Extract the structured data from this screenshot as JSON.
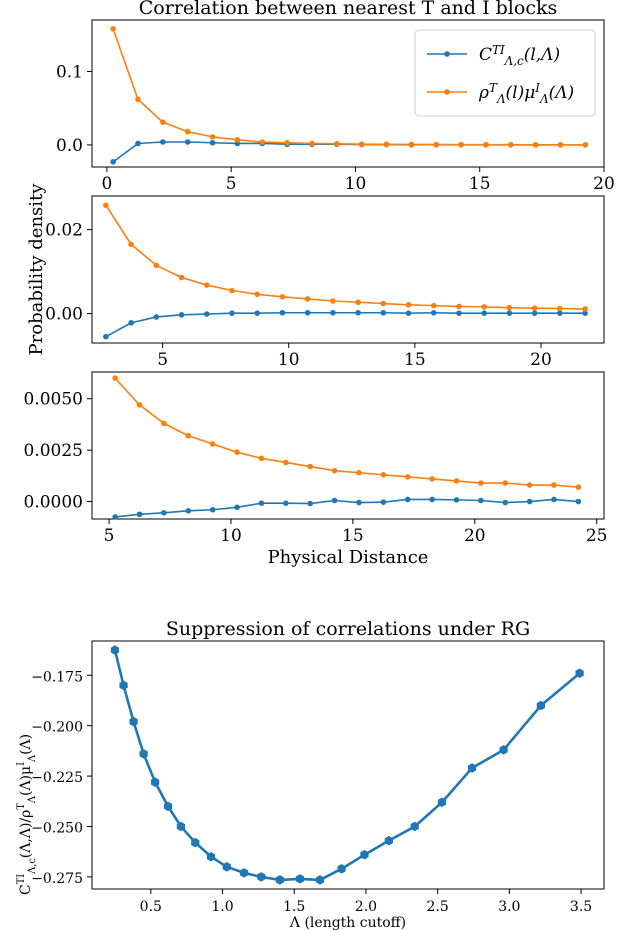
{
  "chart_data": [
    {
      "type": "line",
      "title": "Correlation between nearest T and I blocks",
      "xlabel": "",
      "ylabel": "",
      "xlim": [
        -0.6,
        20.0
      ],
      "ylim": [
        -0.03,
        0.17
      ],
      "xticks": [
        0,
        5,
        10,
        15,
        20
      ],
      "yticks": [
        0.0,
        0.1
      ],
      "ytick_labels": [
        "0.0",
        "0.1"
      ],
      "legend_position": "top-right",
      "series": [
        {
          "name": "C^{TI}_{Λ,c}(l,Λ)",
          "color": "#1f77b4",
          "x": [
            0.25,
            1.25,
            2.25,
            3.25,
            4.25,
            5.25,
            6.25,
            7.25,
            8.25,
            9.25,
            10.25,
            11.25,
            12.25,
            13.25,
            14.25,
            15.25,
            16.25,
            17.25,
            18.25,
            19.25
          ],
          "values": [
            -0.023,
            0.002,
            0.004,
            0.004,
            0.003,
            0.002,
            0.002,
            0.001,
            0.001,
            0.001,
            0.0005,
            0.0005,
            0.0003,
            0.0003,
            0.0002,
            0.0002,
            0.0001,
            0.0001,
            0.0001,
            0.0001
          ]
        },
        {
          "name": "ρ^T_Λ(l)μ^I_Λ(Λ)",
          "color": "#ff7f0e",
          "x": [
            0.25,
            1.25,
            2.25,
            3.25,
            4.25,
            5.25,
            6.25,
            7.25,
            8.25,
            9.25,
            10.25,
            11.25,
            12.25,
            13.25,
            14.25,
            15.25,
            16.25,
            17.25,
            18.25,
            19.25
          ],
          "values": [
            0.158,
            0.062,
            0.031,
            0.018,
            0.011,
            0.007,
            0.004,
            0.003,
            0.002,
            0.0015,
            0.001,
            0.0008,
            0.0006,
            0.0005,
            0.0004,
            0.0003,
            0.0003,
            0.0002,
            0.0002,
            0.0002
          ]
        }
      ]
    },
    {
      "type": "line",
      "title": "",
      "xlabel": "",
      "ylabel": "Probability density",
      "xlim": [
        2.2,
        22.5
      ],
      "ylim": [
        -0.007,
        0.028
      ],
      "xticks": [
        5,
        10,
        15,
        20
      ],
      "yticks": [
        0.0,
        0.02
      ],
      "ytick_labels": [
        "0.00",
        "0.02"
      ],
      "series": [
        {
          "name": "C^{TI}_{Λ,c}(l,Λ)",
          "color": "#1f77b4",
          "x": [
            2.75,
            3.75,
            4.75,
            5.75,
            6.75,
            7.75,
            8.75,
            9.75,
            10.75,
            11.75,
            12.75,
            13.75,
            14.75,
            15.75,
            16.75,
            17.75,
            18.75,
            19.75,
            20.75,
            21.75
          ],
          "values": [
            -0.0055,
            -0.0022,
            -0.0008,
            -0.0003,
            -0.0001,
            0.0001,
            0.0001,
            0.0002,
            0.0002,
            0.0002,
            0.0002,
            0.0002,
            0.0001,
            0.0002,
            0.0001,
            0.0001,
            0.0001,
            0.0001,
            0.0001,
            0.0001
          ]
        },
        {
          "name": "ρ^T_Λ(l)μ^I_Λ(Λ)",
          "color": "#ff7f0e",
          "x": [
            2.75,
            3.75,
            4.75,
            5.75,
            6.75,
            7.75,
            8.75,
            9.75,
            10.75,
            11.75,
            12.75,
            13.75,
            14.75,
            15.75,
            16.75,
            17.75,
            18.75,
            19.75,
            20.75,
            21.75
          ],
          "values": [
            0.0258,
            0.0165,
            0.0115,
            0.0086,
            0.0068,
            0.0055,
            0.0046,
            0.004,
            0.0035,
            0.003,
            0.0027,
            0.0024,
            0.0021,
            0.0019,
            0.0017,
            0.0016,
            0.0014,
            0.0013,
            0.0012,
            0.0011
          ]
        }
      ]
    },
    {
      "type": "line",
      "title": "",
      "xlabel": "Physical Distance",
      "ylabel": "",
      "xlim": [
        4.3,
        25.3
      ],
      "ylim": [
        -0.00085,
        0.0063
      ],
      "xticks": [
        5,
        10,
        15,
        20,
        25
      ],
      "yticks": [
        0.0,
        0.0025,
        0.005
      ],
      "ytick_labels": [
        "0.0000",
        "0.0025",
        "0.0050"
      ],
      "series": [
        {
          "name": "C^{TI}_{Λ,c}(l,Λ)",
          "color": "#1f77b4",
          "x": [
            5.25,
            6.25,
            7.25,
            8.25,
            9.25,
            10.25,
            11.25,
            12.25,
            13.25,
            14.25,
            15.25,
            16.25,
            17.25,
            18.25,
            19.25,
            20.25,
            21.25,
            22.25,
            23.25,
            24.25
          ],
          "values": [
            -0.00075,
            -0.00062,
            -0.00055,
            -0.00045,
            -0.0004,
            -0.00028,
            -8e-05,
            -8e-05,
            -0.0001,
            5e-05,
            -5e-05,
            -3e-05,
            0.0001,
            0.0001,
            8e-05,
            5e-05,
            -5e-05,
            0.0,
            0.0001,
            0.0
          ]
        },
        {
          "name": "ρ^T_Λ(l)μ^I_Λ(Λ)",
          "color": "#ff7f0e",
          "x": [
            5.25,
            6.25,
            7.25,
            8.25,
            9.25,
            10.25,
            11.25,
            12.25,
            13.25,
            14.25,
            15.25,
            16.25,
            17.25,
            18.25,
            19.25,
            20.25,
            21.25,
            22.25,
            23.25,
            24.25
          ],
          "values": [
            0.006,
            0.0047,
            0.0038,
            0.0032,
            0.0028,
            0.0024,
            0.0021,
            0.0019,
            0.0017,
            0.0015,
            0.0014,
            0.0013,
            0.0012,
            0.0011,
            0.001,
            0.0009,
            0.0009,
            0.0008,
            0.0008,
            0.0007
          ]
        }
      ]
    },
    {
      "type": "line",
      "title": "Suppression of correlations under RG",
      "xlabel": "Λ (length cutoff)",
      "ylabel": "C^{TI}_{Λ,c}(Λ,Λ)/ρ^T_Λ(Λ)μ^I_Λ(Λ)",
      "xlim": [
        0.09,
        3.66
      ],
      "ylim": [
        -0.281,
        -0.158
      ],
      "xticks": [
        0.5,
        1.0,
        1.5,
        2.0,
        2.5,
        3.0,
        3.5
      ],
      "xtick_labels": [
        "0.5",
        "1.0",
        "1.5",
        "2.0",
        "2.5",
        "3.0",
        "3.5"
      ],
      "yticks": [
        -0.275,
        -0.25,
        -0.225,
        -0.2,
        -0.175
      ],
      "ytick_labels": [
        "−0.275",
        "−0.250",
        "−0.225",
        "−0.200",
        "−0.175"
      ],
      "series": [
        {
          "name": "",
          "color": "#1f77b4",
          "x": [
            0.25,
            0.31,
            0.38,
            0.45,
            0.53,
            0.62,
            0.71,
            0.81,
            0.92,
            1.03,
            1.15,
            1.27,
            1.4,
            1.54,
            1.68,
            1.83,
            1.99,
            2.16,
            2.34,
            2.53,
            2.74,
            2.96,
            3.22,
            3.49
          ],
          "values": [
            -0.1625,
            -0.18,
            -0.198,
            -0.214,
            -0.228,
            -0.24,
            -0.25,
            -0.258,
            -0.265,
            -0.27,
            -0.273,
            -0.275,
            -0.2765,
            -0.276,
            -0.2765,
            -0.271,
            -0.264,
            -0.257,
            -0.25,
            -0.238,
            -0.221,
            -0.212,
            -0.19,
            -0.174
          ]
        }
      ]
    }
  ]
}
